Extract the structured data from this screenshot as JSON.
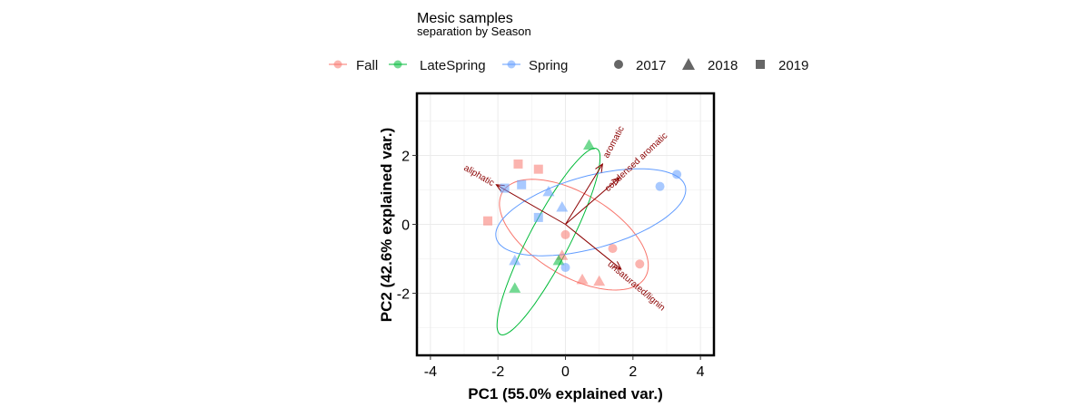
{
  "chart_data": {
    "type": "scatter",
    "title": "Mesic samples",
    "subtitle": "separation by Season",
    "xlabel": "PC1 (55.0% explained var.)",
    "ylabel": "PC2 (42.6% explained var.)",
    "xlim": [
      -4.4,
      4.4
    ],
    "ylim": [
      -3.8,
      3.8
    ],
    "x_ticks": [
      -4,
      -2,
      0,
      2,
      4
    ],
    "y_ticks": [
      -2,
      0,
      2
    ],
    "grid": true,
    "legend_position": "top",
    "color_legend": [
      {
        "label": "Fall",
        "color": "#f8766d"
      },
      {
        "label": "LateSpring",
        "color": "#00ba38"
      },
      {
        "label": "Spring",
        "color": "#619cff"
      }
    ],
    "shape_legend": [
      {
        "label": "2017",
        "shape": "circle"
      },
      {
        "label": "2018",
        "shape": "triangle"
      },
      {
        "label": "2019",
        "shape": "square"
      }
    ],
    "points": [
      {
        "x": -1.4,
        "y": 1.75,
        "group": "Fall",
        "year": "2019"
      },
      {
        "x": -0.8,
        "y": 1.6,
        "group": "Fall",
        "year": "2019"
      },
      {
        "x": -2.3,
        "y": 0.1,
        "group": "Fall",
        "year": "2019"
      },
      {
        "x": 0.0,
        "y": -0.3,
        "group": "Fall",
        "year": "2017"
      },
      {
        "x": 1.4,
        "y": -0.7,
        "group": "Fall",
        "year": "2017"
      },
      {
        "x": 2.2,
        "y": -1.15,
        "group": "Fall",
        "year": "2017"
      },
      {
        "x": -0.1,
        "y": -0.9,
        "group": "Fall",
        "year": "2018"
      },
      {
        "x": 0.5,
        "y": -1.6,
        "group": "Fall",
        "year": "2018"
      },
      {
        "x": 1.0,
        "y": -1.65,
        "group": "Fall",
        "year": "2018"
      },
      {
        "x": 0.7,
        "y": 2.3,
        "group": "LateSpring",
        "year": "2018"
      },
      {
        "x": -0.2,
        "y": -1.05,
        "group": "LateSpring",
        "year": "2018"
      },
      {
        "x": -1.5,
        "y": -1.85,
        "group": "LateSpring",
        "year": "2018"
      },
      {
        "x": -1.3,
        "y": 1.15,
        "group": "Spring",
        "year": "2019"
      },
      {
        "x": -1.8,
        "y": 1.05,
        "group": "Spring",
        "year": "2019"
      },
      {
        "x": -0.8,
        "y": 0.2,
        "group": "Spring",
        "year": "2019"
      },
      {
        "x": -0.5,
        "y": 0.95,
        "group": "Spring",
        "year": "2018"
      },
      {
        "x": -0.1,
        "y": 0.5,
        "group": "Spring",
        "year": "2018"
      },
      {
        "x": -1.5,
        "y": -1.05,
        "group": "Spring",
        "year": "2018"
      },
      {
        "x": 0.0,
        "y": -1.25,
        "group": "Spring",
        "year": "2017"
      },
      {
        "x": 2.8,
        "y": 1.1,
        "group": "Spring",
        "year": "2017"
      },
      {
        "x": 3.3,
        "y": 1.45,
        "group": "Spring",
        "year": "2017"
      }
    ],
    "ellipses": [
      {
        "group": "Fall",
        "cx": 0.25,
        "cy": -0.3,
        "rx": 2.45,
        "ry": 1.2,
        "angle": -30
      },
      {
        "group": "LateSpring",
        "cx": -0.5,
        "cy": -0.5,
        "rx": 3.05,
        "ry": 0.6,
        "angle": 62
      },
      {
        "group": "Spring",
        "cx": 0.75,
        "cy": 0.35,
        "rx": 2.9,
        "ry": 1.05,
        "angle": 15
      }
    ],
    "vectors": [
      {
        "label": "aromatic",
        "x": 1.1,
        "y": 1.75
      },
      {
        "label": "condensed aromatic",
        "x": 1.6,
        "y": 1.35
      },
      {
        "label": "aliphatic",
        "x": -2.05,
        "y": 1.15
      },
      {
        "label": "unsaturated/lignin",
        "x": 1.65,
        "y": -1.3
      }
    ],
    "vector_labels": [
      {
        "label": "aromatic",
        "x": 1.5,
        "y": 2.35,
        "angle": -62
      },
      {
        "label": "condensed aromatic",
        "x": 2.15,
        "y": 1.75,
        "angle": -43
      },
      {
        "label": "aliphatic",
        "x": -2.6,
        "y": 1.35,
        "angle": 30
      },
      {
        "label": "unsaturated/lignin",
        "x": 2.05,
        "y": -1.85,
        "angle": 40
      }
    ]
  }
}
